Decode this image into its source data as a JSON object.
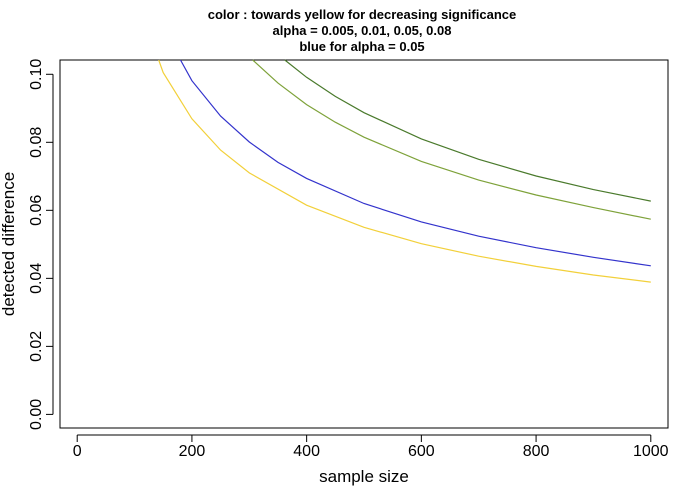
{
  "chart_data": {
    "type": "line",
    "title_lines": [
      "color : towards yellow for decreasing significance",
      "alpha =  0.005, 0.01, 0.05, 0.08",
      "blue for alpha =  0.05"
    ],
    "xlabel": "sample size",
    "ylabel": "detected difference",
    "xlim": [
      -30,
      1030
    ],
    "ylim": [
      -0.004,
      0.1042
    ],
    "x_ticks": [
      0,
      200,
      400,
      600,
      800,
      1000
    ],
    "x_tick_labels": [
      "0",
      "200",
      "400",
      "600",
      "800",
      "1000"
    ],
    "y_ticks": [
      0.0,
      0.02,
      0.04,
      0.06,
      0.08,
      0.1
    ],
    "y_tick_labels": [
      "0.00",
      "0.02",
      "0.04",
      "0.06",
      "0.08",
      "0.10"
    ],
    "grid": false,
    "series": [
      {
        "color": "#4a7a2c",
        "x": [
          362,
          400,
          450,
          500,
          600,
          700,
          800,
          900,
          1000
        ],
        "y": [
          0.1042,
          0.0991,
          0.0935,
          0.0887,
          0.081,
          0.075,
          0.0701,
          0.0661,
          0.0627
        ]
      },
      {
        "color": "#7ea23a",
        "x": [
          306,
          350,
          400,
          450,
          500,
          600,
          700,
          800,
          900,
          1000
        ],
        "y": [
          0.1042,
          0.0974,
          0.0911,
          0.0859,
          0.0815,
          0.0744,
          0.0689,
          0.0645,
          0.0608,
          0.0574
        ]
      },
      {
        "color": "#3333cc",
        "x": [
          180,
          200,
          250,
          300,
          350,
          400,
          500,
          600,
          700,
          800,
          900,
          1000
        ],
        "y": [
          0.1042,
          0.0981,
          0.0877,
          0.0801,
          0.0741,
          0.0694,
          0.062,
          0.0566,
          0.0524,
          0.049,
          0.0462,
          0.0437
        ]
      },
      {
        "color": "#f2d03a",
        "x": [
          142,
          150,
          200,
          250,
          300,
          400,
          500,
          600,
          700,
          800,
          900,
          1000
        ],
        "y": [
          0.1042,
          0.1005,
          0.0869,
          0.0777,
          0.071,
          0.0615,
          0.055,
          0.0502,
          0.0465,
          0.0435,
          0.041,
          0.0389
        ]
      }
    ]
  }
}
